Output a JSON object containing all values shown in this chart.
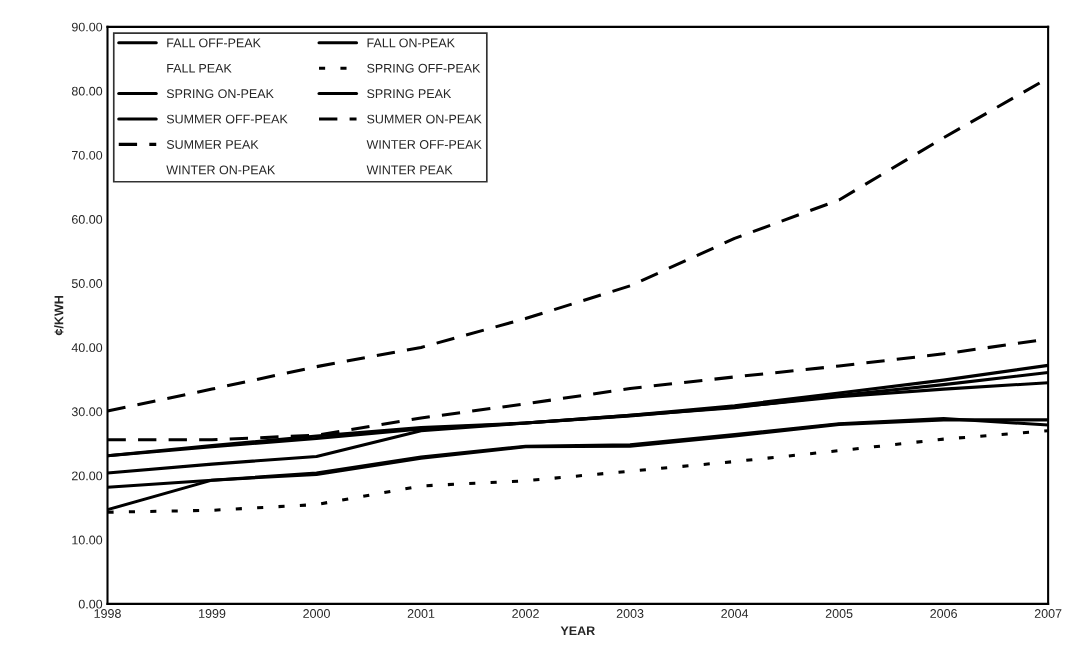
{
  "chart_data": {
    "type": "line",
    "xlabel": "YEAR",
    "ylabel": "¢/KWH",
    "x": [
      1998,
      1999,
      2000,
      2001,
      2002,
      2003,
      2004,
      2005,
      2006,
      2007
    ],
    "xlim": [
      1998,
      2007
    ],
    "xticks": [
      1998,
      1999,
      2000,
      2001,
      2002,
      2003,
      2004,
      2005,
      2006,
      2007
    ],
    "ylim": [
      0,
      90
    ],
    "yticks": [
      {
        "value": 0,
        "label": "0.00"
      },
      {
        "value": 10,
        "label": "10.00"
      },
      {
        "value": 20,
        "label": "20.00"
      },
      {
        "value": 30,
        "label": "30.00"
      },
      {
        "value": 40,
        "label": "40.00"
      },
      {
        "value": 50,
        "label": "50.00"
      },
      {
        "value": 60,
        "label": "60.00"
      },
      {
        "value": 70,
        "label": "70.00"
      },
      {
        "value": 80,
        "label": "80.00"
      },
      {
        "value": 90,
        "label": "90.00"
      }
    ],
    "grid": false,
    "legend": "top left",
    "marker": "none",
    "series": [
      {
        "name": "FALL OFF-PEAK",
        "color": "#000000",
        "line_style": "solid",
        "values": [
          23.1,
          24.5,
          25.8,
          27.3,
          28.2,
          29.3,
          30.7,
          32.3,
          33.5,
          34.5
        ]
      },
      {
        "name": "FALL ON-PEAK",
        "color": "#000000",
        "line_style": "solid",
        "values": [
          23.1,
          24.7,
          26.2,
          27.5,
          28.2,
          29.4,
          30.9,
          32.9,
          34.9,
          37.2
        ]
      },
      {
        "name": "FALL PEAK",
        "values": [
          null,
          null,
          null,
          null,
          null,
          null,
          null,
          null,
          null,
          null
        ]
      },
      {
        "name": "SPRING OFF-PEAK",
        "color": "#000000",
        "line_style": "dotted",
        "values": [
          14.3,
          14.6,
          15.5,
          18.4,
          19.2,
          20.7,
          22.2,
          23.9,
          25.7,
          27.0
        ]
      },
      {
        "name": "SPRING ON-PEAK",
        "color": "#000000",
        "line_style": "solid",
        "values": [
          14.7,
          19.3,
          20.4,
          22.9,
          24.6,
          24.8,
          26.4,
          28.1,
          28.9,
          27.9
        ]
      },
      {
        "name": "SPRING PEAK",
        "color": "#000000",
        "line_style": "solid",
        "values": [
          20.4,
          21.8,
          23.0,
          27.0,
          28.2,
          29.4,
          30.6,
          32.5,
          34.2,
          36.1
        ]
      },
      {
        "name": "SUMMER OFF-PEAK",
        "color": "#000000",
        "line_style": "solid",
        "values": [
          18.2,
          19.3,
          20.2,
          22.7,
          24.5,
          24.6,
          26.2,
          28.0,
          28.7,
          28.7
        ]
      },
      {
        "name": "SUMMER ON-PEAK",
        "color": "#000000",
        "line_style": "dashed",
        "values": [
          30.1,
          33.5,
          37.0,
          40.0,
          44.5,
          49.6,
          57.0,
          63.0,
          72.7,
          82.0
        ]
      },
      {
        "name": "SUMMER PEAK",
        "color": "#000000",
        "line_style": "dashed",
        "values": [
          25.6,
          25.6,
          26.3,
          29.0,
          31.2,
          33.6,
          35.4,
          37.1,
          39.0,
          41.3
        ]
      },
      {
        "name": "WINTER OFF-PEAK",
        "values": [
          null,
          null,
          null,
          null,
          null,
          null,
          null,
          null,
          null,
          null
        ]
      },
      {
        "name": "WINTER ON-PEAK",
        "values": [
          null,
          null,
          null,
          null,
          null,
          null,
          null,
          null,
          null,
          null
        ]
      },
      {
        "name": "WINTER PEAK",
        "values": [
          null,
          null,
          null,
          null,
          null,
          null,
          null,
          null,
          null,
          null
        ]
      }
    ]
  }
}
